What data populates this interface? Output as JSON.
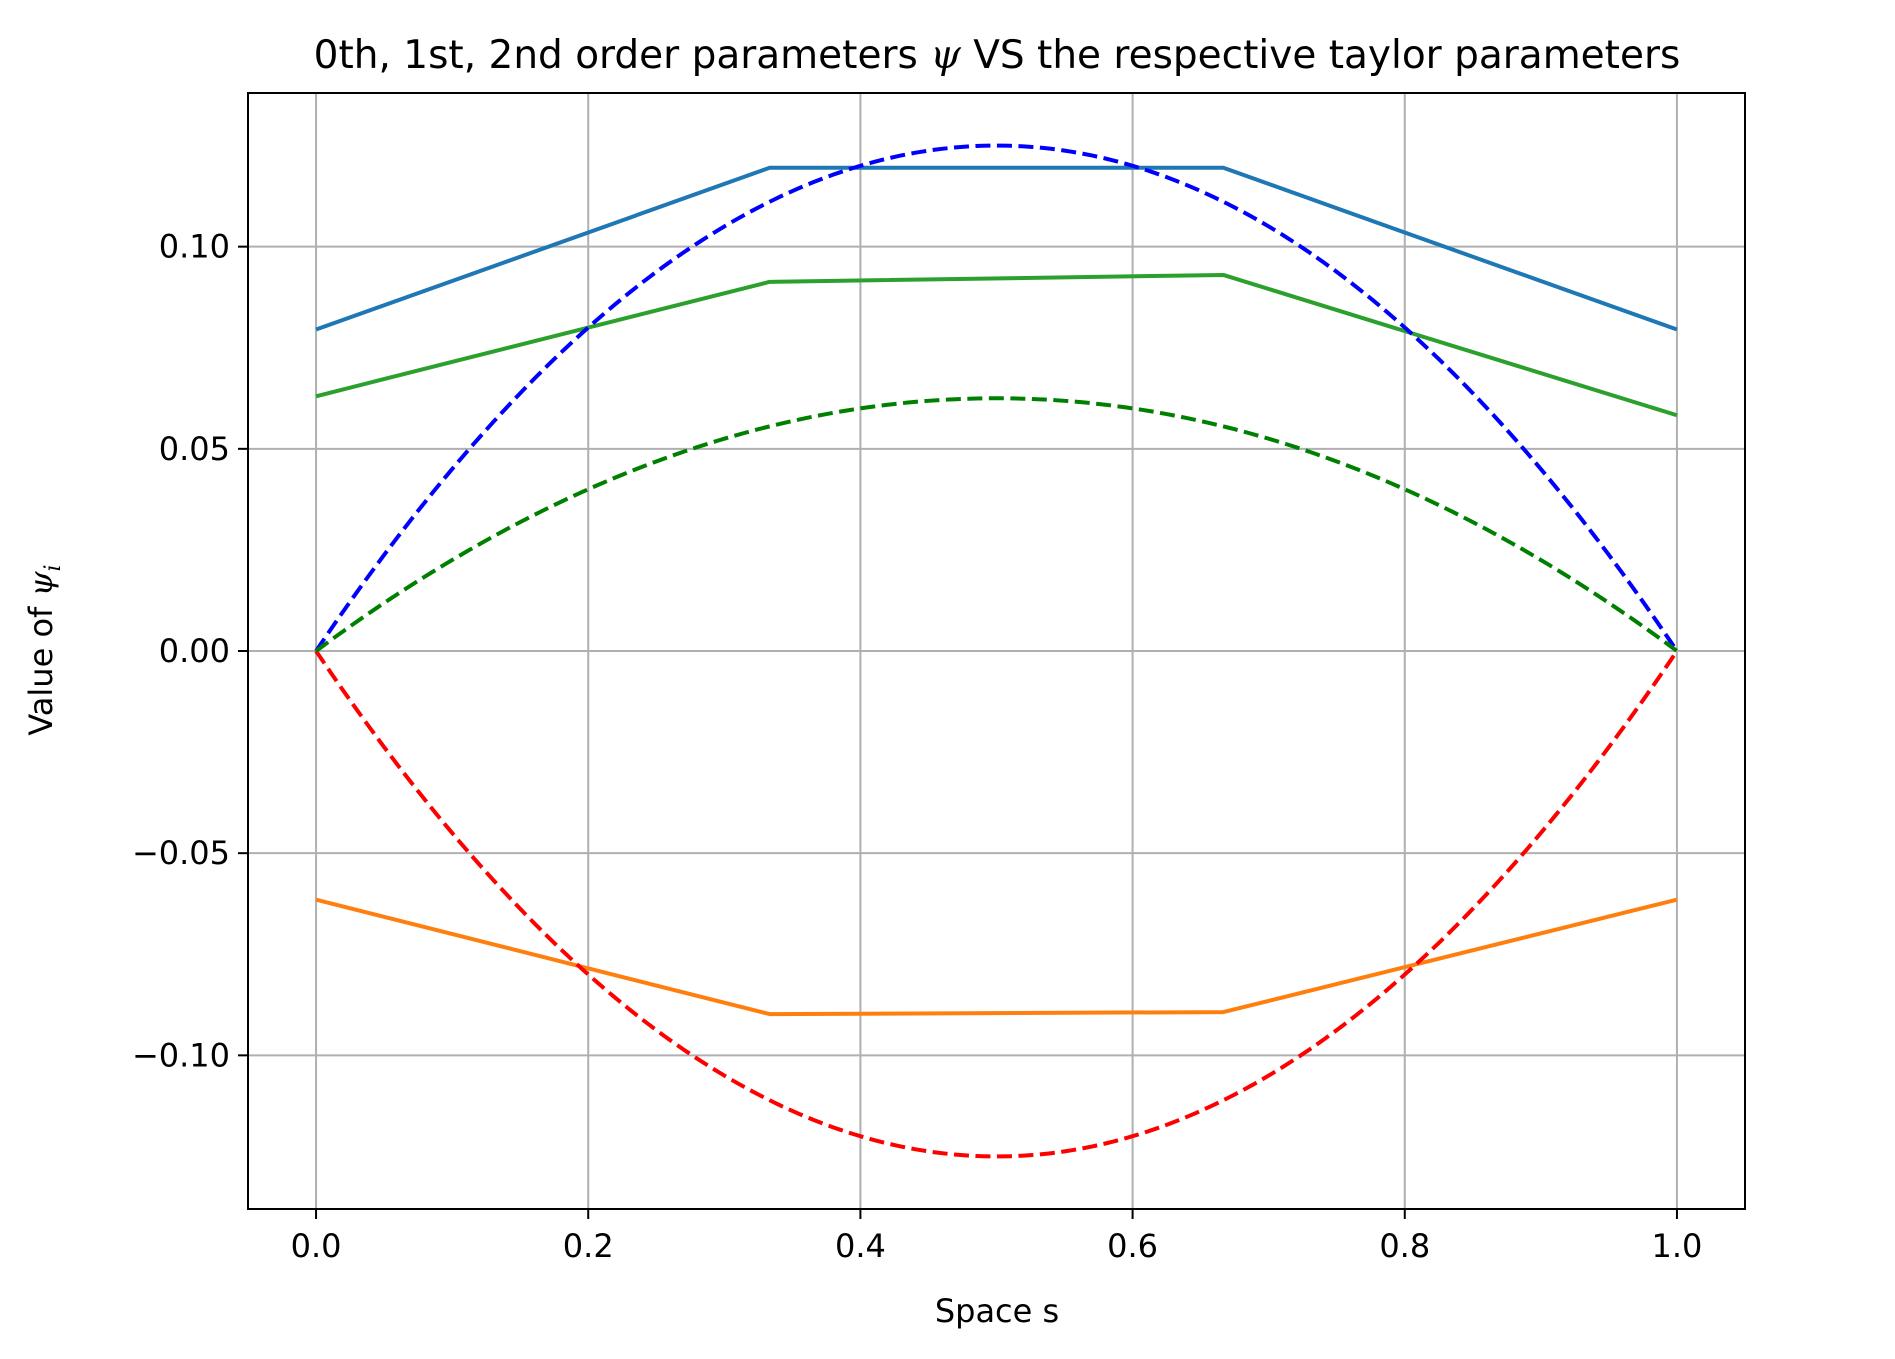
{
  "chart_data": {
    "type": "line",
    "title": {
      "before": "0th, 1st, 2nd order parameters ",
      "symbol": "ψ",
      "after": " VS the respective taylor parameters"
    },
    "xlabel": "Space s",
    "ylabel": {
      "text": "Value of ",
      "symbol": "ψ",
      "subscript": "i"
    },
    "xlim": [
      -0.05,
      1.05
    ],
    "ylim": [
      -0.138,
      0.138
    ],
    "xticks": [
      0.0,
      0.2,
      0.4,
      0.6,
      0.8,
      1.0
    ],
    "xtick_labels": [
      "0.0",
      "0.2",
      "0.4",
      "0.6",
      "0.8",
      "1.0"
    ],
    "yticks": [
      -0.1,
      -0.05,
      0.0,
      0.05,
      0.1
    ],
    "ytick_labels": [
      "−0.10",
      "−0.05",
      "0.00",
      "0.05",
      "0.10"
    ],
    "grid": true,
    "legend": "none",
    "series": [
      {
        "style": "solid",
        "color": "#1f77b4",
        "x": [
          0.0,
          0.3333,
          0.6667,
          1.0
        ],
        "y": [
          0.0795,
          0.1195,
          0.1195,
          0.0795
        ]
      },
      {
        "style": "solid",
        "color": "#ff7f0e",
        "x": [
          0.0,
          0.3333,
          0.6667,
          1.0
        ],
        "y": [
          -0.0615,
          -0.0898,
          -0.0893,
          -0.0615
        ]
      },
      {
        "style": "solid",
        "color": "#2ca02c",
        "x": [
          0.0,
          0.3333,
          0.6667,
          1.0
        ],
        "y": [
          0.063,
          0.0913,
          0.093,
          0.0583
        ]
      },
      {
        "style": "dashed",
        "color": "#0000ff",
        "function": "0.5*s*(1-s)",
        "x_range": [
          0.0,
          1.0
        ]
      },
      {
        "style": "dashed",
        "color": "#ff0000",
        "function": "-0.5*s*(1-s)",
        "x_range": [
          0.0,
          1.0
        ]
      },
      {
        "style": "dashed",
        "color": "#008000",
        "function": "0.25*s*(1-s)",
        "x_range": [
          0.0,
          1.0
        ]
      }
    ]
  }
}
